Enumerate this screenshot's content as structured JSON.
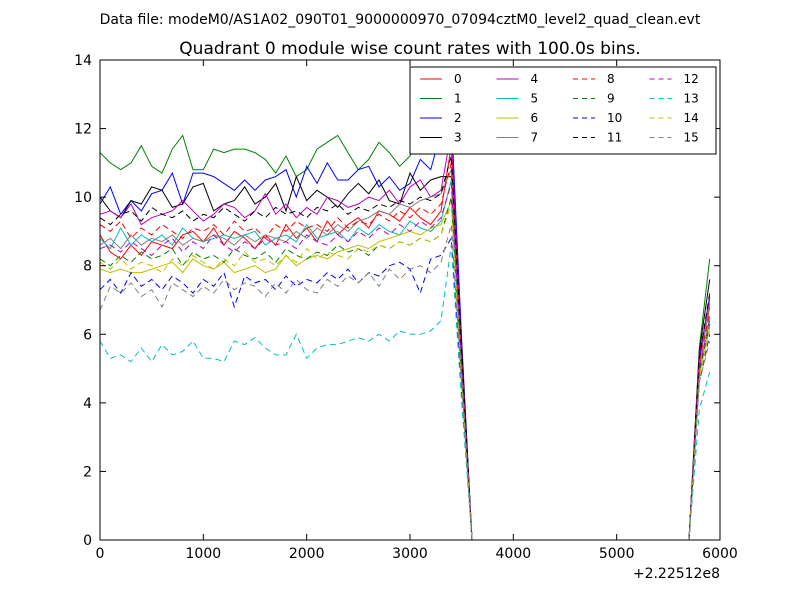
{
  "chart_data": {
    "type": "line",
    "suptitle": "Data file: modeM0/AS1A02_090T01_9000000970_07094cztM0_level2_quad_clean.evt",
    "title": "Quadrant 0 module wise count rates with 100.0s bins.",
    "xlabel": "",
    "ylabel": "",
    "x_offset_label": "+2.22512e8",
    "xlim": [
      0,
      6000
    ],
    "ylim": [
      0,
      14
    ],
    "xticks": [
      0,
      1000,
      2000,
      3000,
      4000,
      5000,
      6000
    ],
    "yticks": [
      0,
      2,
      4,
      6,
      8,
      10,
      12,
      14
    ],
    "grid": false,
    "legend_position": "top-right",
    "legend_columns": 4,
    "x": [
      0,
      100,
      200,
      300,
      400,
      500,
      600,
      700,
      800,
      900,
      1000,
      1100,
      1200,
      1300,
      1400,
      1500,
      1600,
      1700,
      1800,
      1900,
      2000,
      2100,
      2200,
      2300,
      2400,
      2500,
      2600,
      2700,
      2800,
      2900,
      3000,
      3100,
      3200,
      3300,
      3400,
      3500,
      3600,
      3700,
      3800,
      3900,
      4000,
      4100,
      4200,
      4300,
      4400,
      4500,
      4600,
      4700,
      4800,
      4900,
      5000,
      5100,
      5200,
      5300,
      5400,
      5500,
      5600,
      5700,
      5800,
      5900
    ],
    "series": [
      {
        "name": "0",
        "color": "#ff0000",
        "dash": "solid",
        "values": [
          8.9,
          8.4,
          8.2,
          8.6,
          8.3,
          8.7,
          8.6,
          8.5,
          8.9,
          9.0,
          8.7,
          9.1,
          8.6,
          9.0,
          8.8,
          8.5,
          8.9,
          8.6,
          9.2,
          8.8,
          9.1,
          8.7,
          9.3,
          8.9,
          9.2,
          9.4,
          9.1,
          9.6,
          9.5,
          9.3,
          9.7,
          9.4,
          9.2,
          9.6,
          11.5,
          5.0,
          0,
          0,
          0,
          0,
          0,
          0,
          0,
          0,
          0,
          0,
          0,
          0,
          0,
          0,
          0,
          0,
          0,
          0,
          0,
          0,
          0,
          0,
          5.2,
          6.8
        ]
      },
      {
        "name": "1",
        "color": "#008000",
        "dash": "solid",
        "values": [
          11.3,
          11.0,
          10.8,
          11.0,
          11.5,
          10.9,
          10.7,
          11.4,
          11.8,
          10.8,
          10.8,
          11.4,
          11.3,
          11.4,
          11.4,
          11.3,
          11.1,
          10.7,
          11.2,
          10.6,
          10.8,
          11.4,
          11.6,
          11.8,
          11.3,
          10.8,
          11.1,
          11.6,
          11.3,
          10.9,
          11.2,
          11.8,
          11.7,
          11.3,
          12.2,
          5.5,
          0,
          0,
          0,
          0,
          0,
          0,
          0,
          0,
          0,
          0,
          0,
          0,
          0,
          0,
          0,
          0,
          0,
          0,
          0,
          0,
          0,
          0,
          5.6,
          8.2
        ]
      },
      {
        "name": "2",
        "color": "#0000ff",
        "dash": "solid",
        "values": [
          9.8,
          10.3,
          9.5,
          9.9,
          9.6,
          10.1,
          10.2,
          10.7,
          9.8,
          10.7,
          10.7,
          10.6,
          10.4,
          10.2,
          10.5,
          10.2,
          10.5,
          10.6,
          10.8,
          10.0,
          10.9,
          10.4,
          11.0,
          10.5,
          10.5,
          10.8,
          10.9,
          10.3,
          10.6,
          10.2,
          10.4,
          11.1,
          10.8,
          11.9,
          12.4,
          5.8,
          0,
          0,
          0,
          0,
          0,
          0,
          0,
          0,
          0,
          0,
          0,
          0,
          0,
          0,
          0,
          0,
          0,
          0,
          0,
          0,
          0,
          0,
          5.3,
          7.1
        ]
      },
      {
        "name": "3",
        "color": "#000000",
        "dash": "solid",
        "values": [
          10.0,
          9.6,
          9.4,
          9.9,
          9.8,
          10.3,
          10.2,
          9.7,
          9.8,
          10.3,
          10.4,
          9.6,
          9.8,
          9.9,
          10.3,
          9.8,
          10.0,
          10.4,
          9.6,
          10.6,
          9.9,
          10.2,
          10.0,
          9.7,
          10.1,
          10.4,
          10.1,
          10.5,
          9.9,
          9.8,
          10.7,
          10.2,
          10.5,
          10.6,
          10.6,
          5.6,
          0,
          0,
          0,
          0,
          0,
          0,
          0,
          0,
          0,
          0,
          0,
          0,
          0,
          0,
          0,
          0,
          0,
          0,
          0,
          0,
          0,
          0,
          5.5,
          7.6
        ]
      },
      {
        "name": "4",
        "color": "#bf00bf",
        "dash": "solid",
        "values": [
          9.5,
          9.6,
          9.4,
          9.8,
          9.2,
          9.4,
          9.5,
          9.6,
          9.9,
          9.6,
          9.3,
          9.5,
          9.8,
          9.7,
          9.4,
          9.6,
          10.1,
          9.5,
          9.8,
          9.4,
          9.7,
          9.5,
          10.0,
          9.9,
          9.7,
          9.8,
          10.0,
          9.9,
          10.2,
          9.8,
          10.3,
          10.5,
          10.0,
          10.2,
          11.9,
          5.3,
          0,
          0,
          0,
          0,
          0,
          0,
          0,
          0,
          0,
          0,
          0,
          0,
          0,
          0,
          0,
          0,
          0,
          0,
          0,
          0,
          0,
          0,
          5.4,
          7.0
        ]
      },
      {
        "name": "5",
        "color": "#00bfbf",
        "dash": "solid",
        "values": [
          8.8,
          8.5,
          9.1,
          8.6,
          8.9,
          8.7,
          8.9,
          8.6,
          9.1,
          8.8,
          8.7,
          8.8,
          8.9,
          8.8,
          8.9,
          9.0,
          8.6,
          8.8,
          8.9,
          8.7,
          9.2,
          8.8,
          8.9,
          9.0,
          8.7,
          9.1,
          8.9,
          9.2,
          9.0,
          8.9,
          9.3,
          9.1,
          9.0,
          9.3,
          10.5,
          4.9,
          0,
          0,
          0,
          0,
          0,
          0,
          0,
          0,
          0,
          0,
          0,
          0,
          0,
          0,
          0,
          0,
          0,
          0,
          0,
          0,
          0,
          0,
          5.0,
          6.5
        ]
      },
      {
        "name": "6",
        "color": "#bfbf00",
        "dash": "solid",
        "values": [
          7.9,
          7.8,
          7.9,
          7.8,
          7.8,
          7.9,
          8.0,
          8.1,
          7.8,
          8.2,
          8.0,
          7.9,
          8.1,
          7.8,
          7.9,
          8.0,
          7.8,
          7.9,
          8.3,
          8.0,
          8.2,
          8.3,
          8.2,
          8.4,
          8.5,
          8.6,
          8.5,
          8.7,
          8.8,
          8.9,
          9.0,
          8.9,
          9.1,
          9.2,
          9.9,
          4.7,
          0,
          0,
          0,
          0,
          0,
          0,
          0,
          0,
          0,
          0,
          0,
          0,
          0,
          0,
          0,
          0,
          0,
          0,
          0,
          0,
          0,
          0,
          4.8,
          6.2
        ]
      },
      {
        "name": "7",
        "color": "#808080",
        "dash": "solid",
        "values": [
          8.6,
          8.8,
          8.5,
          8.9,
          8.6,
          8.8,
          8.7,
          8.9,
          8.6,
          8.8,
          8.7,
          8.9,
          8.8,
          8.6,
          8.9,
          8.7,
          8.9,
          8.8,
          8.7,
          9.0,
          8.8,
          9.1,
          8.9,
          9.2,
          9.0,
          9.3,
          9.4,
          9.6,
          9.5,
          9.8,
          9.7,
          9.9,
          10.0,
          10.1,
          10.8,
          5.2,
          0,
          0,
          0,
          0,
          0,
          0,
          0,
          0,
          0,
          0,
          0,
          0,
          0,
          0,
          0,
          0,
          0,
          0,
          0,
          0,
          0,
          0,
          5.1,
          6.9
        ]
      },
      {
        "name": "8",
        "color": "#ff0000",
        "dash": "dashed",
        "values": [
          9.2,
          9.0,
          9.3,
          8.8,
          9.1,
          8.9,
          9.2,
          9.0,
          8.8,
          9.1,
          9.0,
          9.2,
          8.9,
          9.3,
          9.0,
          9.1,
          8.8,
          9.2,
          9.0,
          9.3,
          9.1,
          9.2,
          9.0,
          9.4,
          9.1,
          9.3,
          9.2,
          9.5,
          9.3,
          9.6,
          9.4,
          9.7,
          9.5,
          9.8,
          11.0,
          5.3,
          0,
          0,
          0,
          0,
          0,
          0,
          0,
          0,
          0,
          0,
          0,
          0,
          0,
          0,
          0,
          0,
          0,
          0,
          0,
          0,
          0,
          0,
          5.2,
          6.6
        ]
      },
      {
        "name": "9",
        "color": "#008000",
        "dash": "dashed",
        "values": [
          8.2,
          8.0,
          8.3,
          8.1,
          8.4,
          8.2,
          8.3,
          8.5,
          8.0,
          8.4,
          8.2,
          8.3,
          8.1,
          8.5,
          8.3,
          8.2,
          8.4,
          8.1,
          8.5,
          8.3,
          8.2,
          8.4,
          8.3,
          8.6,
          8.4,
          8.5,
          8.3,
          8.6,
          8.5,
          8.7,
          8.6,
          8.8,
          8.7,
          8.9,
          10.0,
          4.8,
          0,
          0,
          0,
          0,
          0,
          0,
          0,
          0,
          0,
          0,
          0,
          0,
          0,
          0,
          0,
          0,
          0,
          0,
          0,
          0,
          0,
          0,
          4.9,
          6.3
        ]
      },
      {
        "name": "10",
        "color": "#0000ff",
        "dash": "dashed",
        "values": [
          7.3,
          7.6,
          7.2,
          7.8,
          7.4,
          7.6,
          7.3,
          7.7,
          7.5,
          7.2,
          7.6,
          7.4,
          7.8,
          6.8,
          7.7,
          7.5,
          7.6,
          7.3,
          7.7,
          7.4,
          7.6,
          7.5,
          7.8,
          7.6,
          7.9,
          7.5,
          7.8,
          7.7,
          8.0,
          8.1,
          7.9,
          7.2,
          8.2,
          8.3,
          8.8,
          4.4,
          0,
          0,
          0,
          0,
          0,
          0,
          0,
          0,
          0,
          0,
          0,
          0,
          0,
          0,
          0,
          0,
          0,
          0,
          0,
          0,
          0,
          0,
          4.6,
          6.0
        ]
      },
      {
        "name": "11",
        "color": "#000000",
        "dash": "dashed",
        "values": [
          9.4,
          9.2,
          9.5,
          9.6,
          9.3,
          9.7,
          9.5,
          9.4,
          9.6,
          9.3,
          9.5,
          9.4,
          9.7,
          9.5,
          9.3,
          9.6,
          9.4,
          9.7,
          9.5,
          9.6,
          9.4,
          9.7,
          9.6,
          9.8,
          9.5,
          9.7,
          9.6,
          9.8,
          9.7,
          9.9,
          9.8,
          10.0,
          9.9,
          10.1,
          11.2,
          5.4,
          0,
          0,
          0,
          0,
          0,
          0,
          0,
          0,
          0,
          0,
          0,
          0,
          0,
          0,
          0,
          0,
          0,
          0,
          0,
          0,
          0,
          0,
          5.3,
          7.2
        ]
      },
      {
        "name": "12",
        "color": "#bf00bf",
        "dash": "dashed",
        "values": [
          8.5,
          8.6,
          8.4,
          8.7,
          8.5,
          8.3,
          8.6,
          8.8,
          8.4,
          8.7,
          8.5,
          8.9,
          8.6,
          8.4,
          8.7,
          8.5,
          8.8,
          8.6,
          8.7,
          8.5,
          8.9,
          8.7,
          8.6,
          8.9,
          8.7,
          9.0,
          8.8,
          9.1,
          8.9,
          9.2,
          9.0,
          9.3,
          9.1,
          9.4,
          10.4,
          5.0,
          0,
          0,
          0,
          0,
          0,
          0,
          0,
          0,
          0,
          0,
          0,
          0,
          0,
          0,
          0,
          0,
          0,
          0,
          0,
          0,
          0,
          0,
          5.0,
          6.4
        ]
      },
      {
        "name": "13",
        "color": "#00bfbf",
        "dash": "dashed",
        "values": [
          5.8,
          5.3,
          5.4,
          5.2,
          5.6,
          5.2,
          5.7,
          5.4,
          5.5,
          5.8,
          5.3,
          5.3,
          5.2,
          5.8,
          5.7,
          5.9,
          5.6,
          5.4,
          5.4,
          6.0,
          5.3,
          5.6,
          5.7,
          5.7,
          5.8,
          5.9,
          5.8,
          6.0,
          5.8,
          6.1,
          6.0,
          6.0,
          6.1,
          6.4,
          8.6,
          4.0,
          0,
          0,
          0,
          0,
          0,
          0,
          0,
          0,
          0,
          0,
          0,
          0,
          0,
          0,
          0,
          0,
          0,
          0,
          0,
          0,
          0,
          0,
          3.8,
          4.9
        ]
      },
      {
        "name": "14",
        "color": "#bfbf00",
        "dash": "dashed",
        "values": [
          8.1,
          7.9,
          8.2,
          7.9,
          8.1,
          8.0,
          7.8,
          8.2,
          8.0,
          8.3,
          8.1,
          7.9,
          8.2,
          8.0,
          8.4,
          8.1,
          8.2,
          8.0,
          8.3,
          8.1,
          8.5,
          8.2,
          8.4,
          8.3,
          8.2,
          8.5,
          8.4,
          8.6,
          8.5,
          8.7,
          8.6,
          8.8,
          8.7,
          8.9,
          9.8,
          4.6,
          0,
          0,
          0,
          0,
          0,
          0,
          0,
          0,
          0,
          0,
          0,
          0,
          0,
          0,
          0,
          0,
          0,
          0,
          0,
          0,
          0,
          0,
          4.7,
          6.1
        ]
      },
      {
        "name": "15",
        "color": "#808080",
        "dash": "dashed",
        "values": [
          6.7,
          7.4,
          7.2,
          7.5,
          7.1,
          7.3,
          6.8,
          7.5,
          7.3,
          7.1,
          7.4,
          7.2,
          7.6,
          7.3,
          7.5,
          7.4,
          7.1,
          7.5,
          7.2,
          7.6,
          7.3,
          7.2,
          7.6,
          7.4,
          7.7,
          7.5,
          7.8,
          7.4,
          7.9,
          7.6,
          7.9,
          8.0,
          7.8,
          8.1,
          9.2,
          4.5,
          0,
          0,
          0,
          0,
          0,
          0,
          0,
          0,
          0,
          0,
          0,
          0,
          0,
          0,
          0,
          0,
          0,
          0,
          0,
          0,
          0,
          0,
          4.6,
          5.8
        ]
      }
    ]
  }
}
